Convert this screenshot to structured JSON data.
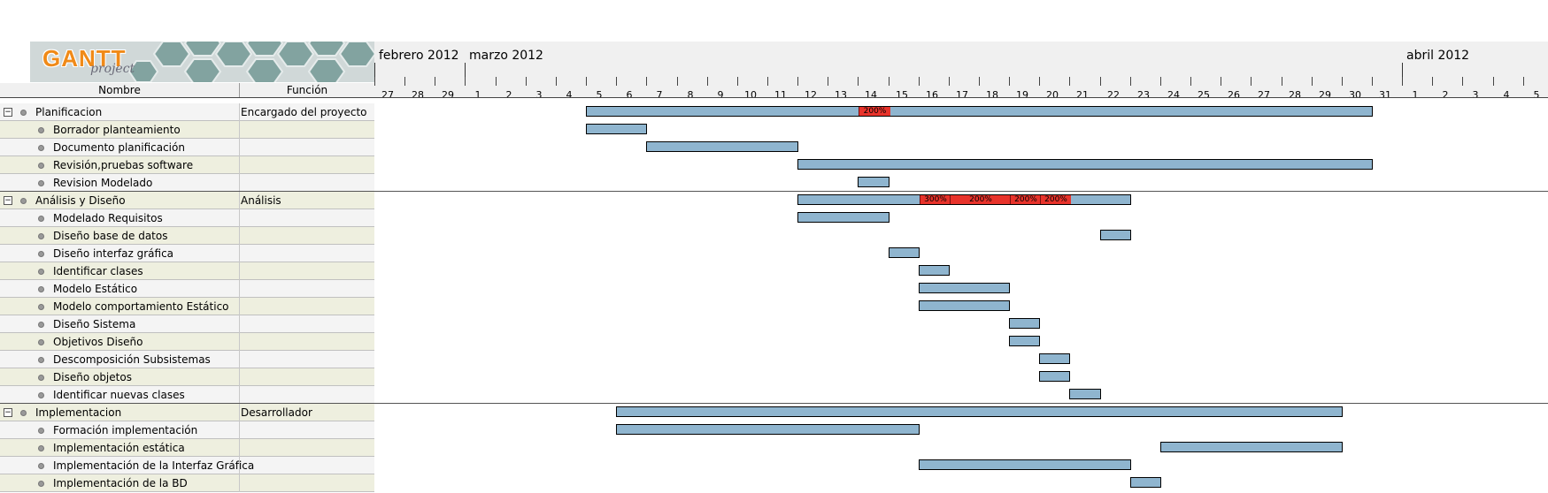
{
  "logo": {
    "word": "GANTT",
    "sub": "project"
  },
  "columns": {
    "name": "Nombre",
    "function": "Función"
  },
  "months": [
    {
      "label": "febrero 2012",
      "day_index": 0
    },
    {
      "label": "marzo 2012",
      "day_index": 3
    },
    {
      "label": "abril 2012",
      "day_index": 34
    }
  ],
  "days": [
    "27",
    "28",
    "29",
    "1",
    "2",
    "3",
    "4",
    "5",
    "6",
    "7",
    "8",
    "9",
    "10",
    "11",
    "12",
    "13",
    "14",
    "15",
    "16",
    "17",
    "18",
    "19",
    "20",
    "21",
    "22",
    "23",
    "24",
    "25",
    "26",
    "27",
    "28",
    "29",
    "30",
    "31",
    "1",
    "2",
    "3",
    "4",
    "5"
  ],
  "tasks": [
    {
      "name": "Planificacion",
      "function": "Encargado del proyecto",
      "group": true,
      "start": 7,
      "end": 33,
      "overloads": [
        {
          "start": 16,
          "end": 17,
          "label": "200%"
        }
      ]
    },
    {
      "name": "Borrador planteamiento",
      "function": "",
      "group": false,
      "start": 7,
      "end": 9
    },
    {
      "name": "Documento planificación",
      "function": "",
      "group": false,
      "start": 9,
      "end": 14
    },
    {
      "name": "Revisión,pruebas software",
      "function": "",
      "group": false,
      "start": 14,
      "end": 33
    },
    {
      "name": "Revision Modelado",
      "function": "",
      "group": false,
      "start": 16,
      "end": 17
    },
    {
      "name": "Análisis y Diseño",
      "function": "Análisis",
      "group": true,
      "start": 14,
      "end": 25,
      "overloads": [
        {
          "start": 18,
          "end": 19,
          "label": "300%"
        },
        {
          "start": 19,
          "end": 21,
          "label": "200%"
        },
        {
          "start": 21,
          "end": 22,
          "label": "200%"
        },
        {
          "start": 22,
          "end": 23,
          "label": "200%"
        }
      ]
    },
    {
      "name": "Modelado Requisitos",
      "function": "",
      "group": false,
      "start": 14,
      "end": 17
    },
    {
      "name": "Diseño base de datos",
      "function": "",
      "group": false,
      "start": 24,
      "end": 25
    },
    {
      "name": "Diseño interfaz gráfica",
      "function": "",
      "group": false,
      "start": 17,
      "end": 18
    },
    {
      "name": "Identificar clases",
      "function": "",
      "group": false,
      "start": 18,
      "end": 19
    },
    {
      "name": "Modelo Estático",
      "function": "",
      "group": false,
      "start": 18,
      "end": 21
    },
    {
      "name": "Modelo comportamiento Estático",
      "function": "",
      "group": false,
      "start": 18,
      "end": 21
    },
    {
      "name": "Diseño Sistema",
      "function": "",
      "group": false,
      "start": 21,
      "end": 22
    },
    {
      "name": "Objetivos Diseño",
      "function": "",
      "group": false,
      "start": 21,
      "end": 22
    },
    {
      "name": "Descomposición Subsistemas",
      "function": "",
      "group": false,
      "start": 22,
      "end": 23
    },
    {
      "name": "Diseño objetos",
      "function": "",
      "group": false,
      "start": 22,
      "end": 23
    },
    {
      "name": "Identificar nuevas clases",
      "function": "",
      "group": false,
      "start": 23,
      "end": 24
    },
    {
      "name": "Implementacion",
      "function": "Desarrollador",
      "group": true,
      "start": 8,
      "end": 32
    },
    {
      "name": "Formación implementación",
      "function": "",
      "group": false,
      "start": 8,
      "end": 18
    },
    {
      "name": "Implementación estática",
      "function": "",
      "group": false,
      "start": 26,
      "end": 32
    },
    {
      "name": "Implementación de la Interfaz Gráfica",
      "function": "",
      "group": false,
      "start": 18,
      "end": 25
    },
    {
      "name": "Implementación de la BD",
      "function": "",
      "group": false,
      "start": 25,
      "end": 26
    }
  ],
  "colors": {
    "bar": "#8fb5cf",
    "overload": "#e8332b",
    "odd_row": "#eeefdf",
    "even_row": "#f4f4f4"
  }
}
